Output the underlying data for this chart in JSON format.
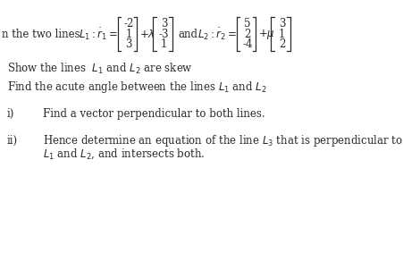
{
  "bg_color": "#ffffff",
  "text_color": "#2a2a2a",
  "fs": 8.5,
  "prefix": "n the two lines   ",
  "L1_eq": "$L_1 : \\dot{r}_1 =$",
  "L1_vec_a": [
    "-2",
    "1",
    "3"
  ],
  "L1_lambda": "$+\\lambda$",
  "L1_vec_b": [
    "3",
    "-3",
    "1"
  ],
  "and": "and",
  "L2_eq": "$L_2 : \\dot{r}_2 =$",
  "L2_vec_a": [
    "5",
    "2",
    "-4"
  ],
  "L2_mu": "$+\\mu$",
  "L2_vec_b": [
    "3",
    "1",
    "2"
  ],
  "show_line": "Show the lines  $\\mathit{L}_1$ and $\\mathit{L}_2$ are skew",
  "angle_line": "Find the acute angle between the lines $\\mathit{L}_1$ and $\\mathit{L}_2$",
  "i_label": "i)",
  "i_text": "Find a vector perpendicular to both lines.",
  "ii_label": "ii)",
  "ii_text": "Hence determine an equation of the line $\\mathit{L}_3$ that is perpendicular to",
  "ii_text2": "$\\mathit{L}_1$ and $\\mathit{L}_2$, and intersects both.",
  "figsize": [
    4.52,
    2.92
  ],
  "dpi": 100
}
